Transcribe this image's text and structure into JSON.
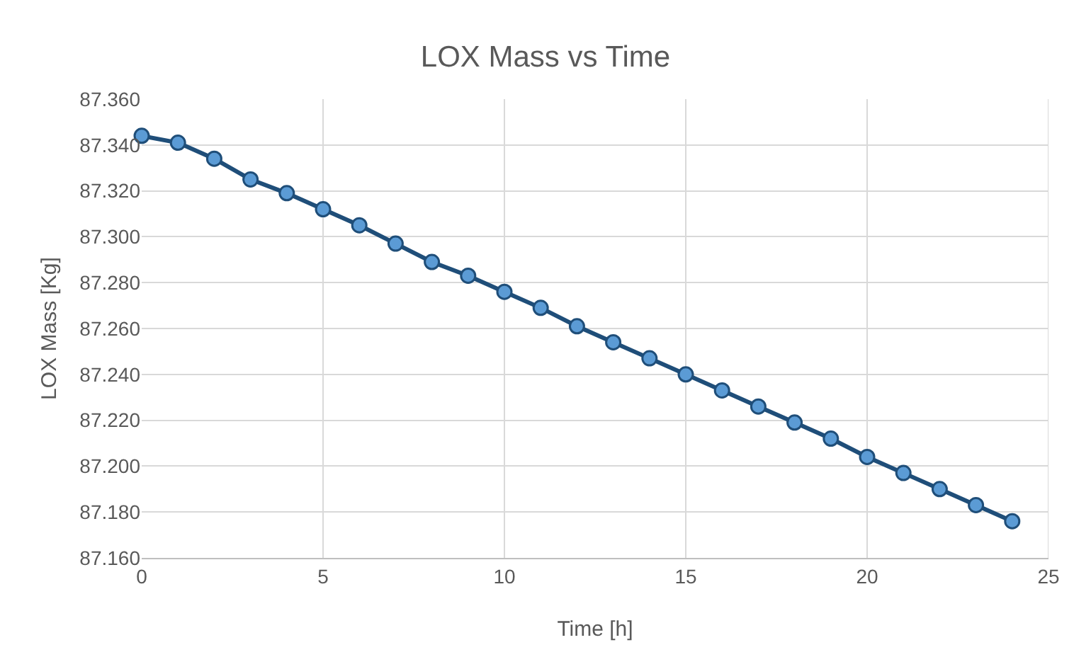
{
  "chart_data": {
    "type": "line",
    "title": "LOX Mass vs Time",
    "xlabel": "Time [h]",
    "ylabel": "LOX Mass [Kg]",
    "x": [
      0,
      1,
      2,
      3,
      4,
      5,
      6,
      7,
      8,
      9,
      10,
      11,
      12,
      13,
      14,
      15,
      16,
      17,
      18,
      19,
      20,
      21,
      22,
      23,
      24
    ],
    "series": [
      {
        "color": "#5b9bd5",
        "values": [
          87.344,
          87.341,
          87.334,
          87.325,
          87.319,
          87.312,
          87.305,
          87.297,
          87.289,
          87.283,
          87.276,
          87.269,
          87.261,
          87.254,
          87.247,
          87.24,
          87.233,
          87.226,
          87.219,
          87.212,
          87.204,
          87.197,
          87.19,
          87.183,
          87.176
        ]
      }
    ],
    "xlim": [
      0,
      25
    ],
    "xticks": [
      0,
      5,
      10,
      15,
      20,
      25
    ],
    "ylim": [
      87.16,
      87.36
    ],
    "yticks": [
      {
        "value": 87.16,
        "label": "87.160"
      },
      {
        "value": 87.18,
        "label": "87.180"
      },
      {
        "value": 87.2,
        "label": "87.200"
      },
      {
        "value": 87.22,
        "label": "87.220"
      },
      {
        "value": 87.24,
        "label": "87.240"
      },
      {
        "value": 87.26,
        "label": "87.260"
      },
      {
        "value": 87.28,
        "label": "87.280"
      },
      {
        "value": 87.3,
        "label": "87.300"
      },
      {
        "value": 87.32,
        "label": "87.320"
      },
      {
        "value": 87.34,
        "label": "87.340"
      },
      {
        "value": 87.36,
        "label": "87.360"
      }
    ],
    "grid": true,
    "marker": "circle",
    "line_style": "solid"
  }
}
